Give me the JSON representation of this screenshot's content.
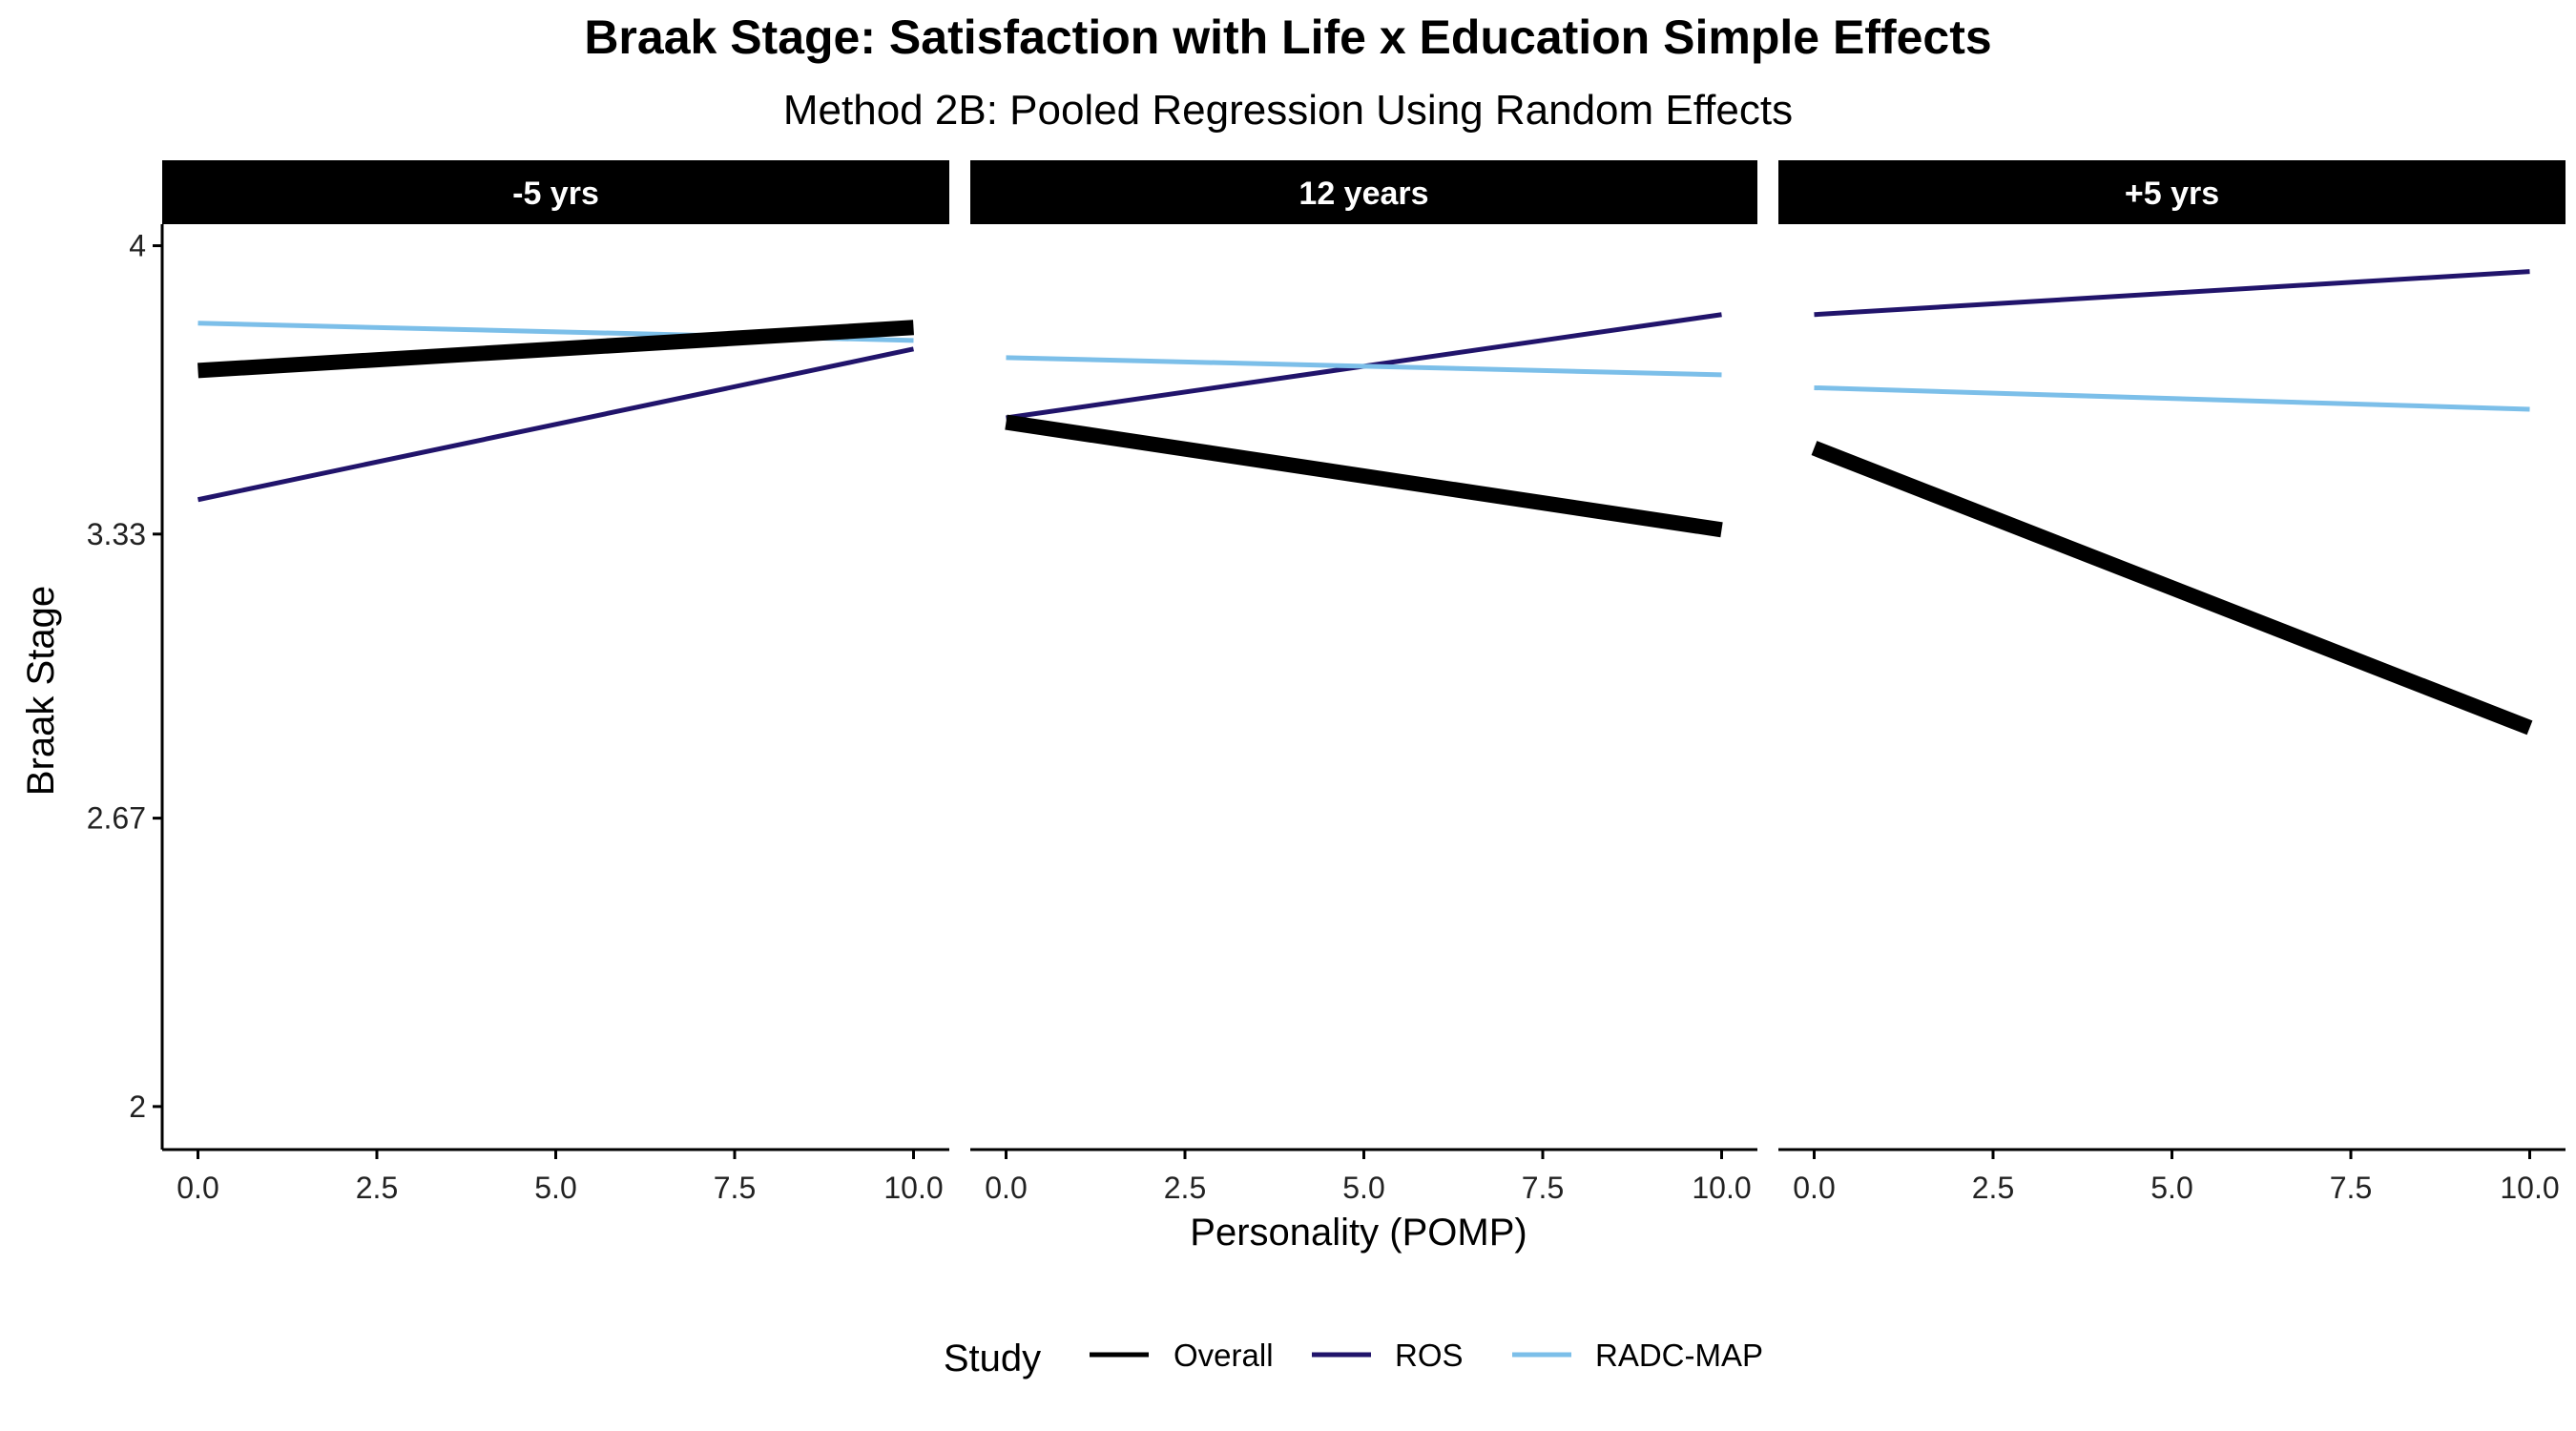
{
  "chart_data": {
    "type": "line",
    "title": "Braak Stage: Satisfaction with Life x Education Simple Effects",
    "subtitle": "Method 2B: Pooled Regression Using Random Effects",
    "xlabel": "Personality (POMP)",
    "ylabel": "Braak Stage",
    "xlim": [
      -0.5,
      10.5
    ],
    "ylim": [
      1.9,
      4.05
    ],
    "x_ticks": [
      0,
      2.5,
      5,
      7.5,
      10
    ],
    "x_tick_labels": [
      "0.0",
      "2.5",
      "5.0",
      "7.5",
      "10.0"
    ],
    "y_ticks": [
      2,
      2.67,
      3.33,
      4
    ],
    "y_tick_labels": [
      "2",
      "2.67",
      "3.33",
      "4"
    ],
    "grid": false,
    "legend": {
      "title": "Study",
      "position": "bottom",
      "entries": [
        {
          "label": "Overall",
          "color": "#000000"
        },
        {
          "label": "ROS",
          "color": "#21146b"
        },
        {
          "label": "RADC-MAP",
          "color": "#7cbfe9"
        }
      ]
    },
    "panels": [
      {
        "label": "-5 yrs",
        "series": [
          {
            "name": "Overall",
            "color": "#000000",
            "thick": true,
            "x": [
              0,
              10
            ],
            "y": [
              3.71,
              3.81
            ]
          },
          {
            "name": "ROS",
            "color": "#21146b",
            "thick": false,
            "x": [
              0,
              10
            ],
            "y": [
              3.41,
              3.76
            ]
          },
          {
            "name": "RADC-MAP",
            "color": "#7cbfe9",
            "thick": false,
            "x": [
              0,
              10
            ],
            "y": [
              3.82,
              3.78
            ]
          }
        ]
      },
      {
        "label": "12 years",
        "series": [
          {
            "name": "Overall",
            "color": "#000000",
            "thick": true,
            "x": [
              0,
              10
            ],
            "y": [
              3.59,
              3.34
            ]
          },
          {
            "name": "ROS",
            "color": "#21146b",
            "thick": false,
            "x": [
              0,
              10
            ],
            "y": [
              3.6,
              3.84
            ]
          },
          {
            "name": "RADC-MAP",
            "color": "#7cbfe9",
            "thick": false,
            "x": [
              0,
              10
            ],
            "y": [
              3.74,
              3.7
            ]
          }
        ]
      },
      {
        "label": "+5 yrs",
        "series": [
          {
            "name": "Overall",
            "color": "#000000",
            "thick": true,
            "x": [
              0,
              10
            ],
            "y": [
              3.53,
              2.88
            ]
          },
          {
            "name": "ROS",
            "color": "#21146b",
            "thick": false,
            "x": [
              0,
              10
            ],
            "y": [
              3.84,
              3.94
            ]
          },
          {
            "name": "RADC-MAP",
            "color": "#7cbfe9",
            "thick": false,
            "x": [
              0,
              10
            ],
            "y": [
              3.67,
              3.62
            ]
          }
        ]
      }
    ]
  }
}
